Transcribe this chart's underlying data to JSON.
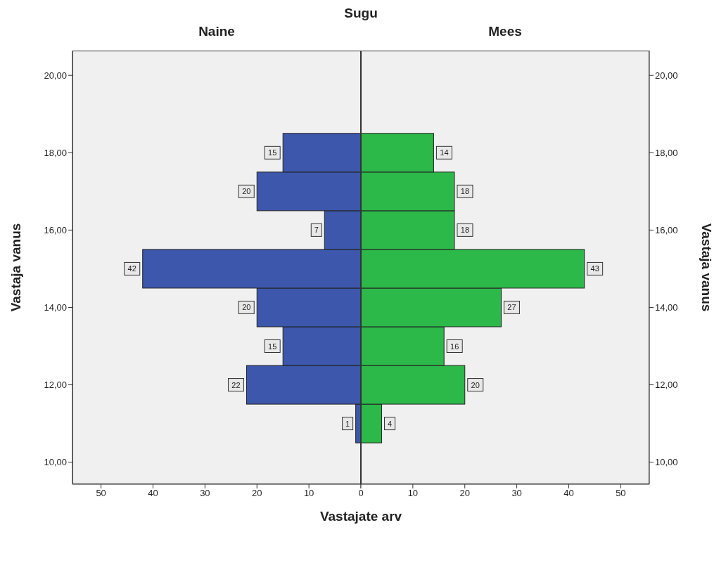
{
  "chart_data": [
    {
      "type": "histogram",
      "orientation": "horizontal",
      "title": "Naine",
      "annotations": [
        "Sugu"
      ],
      "xlabel": "Vastajate arv",
      "ylabel": "Vastaja vanus",
      "bins": [
        10.5,
        11.5,
        12.5,
        13.5,
        14.5,
        15.5,
        16.5,
        17.5,
        18.5
      ],
      "values": [
        1,
        22,
        15,
        20,
        42,
        7,
        20,
        15
      ],
      "color": "#3c57ab",
      "xlim": [
        55.5,
        0
      ],
      "xticks": [
        50,
        40,
        30,
        20,
        10,
        {
          "value": 0,
          "label": null
        }
      ],
      "ylim": [
        9.43,
        20.64
      ],
      "yticks": [
        {
          "value": 10,
          "label": "10,00"
        },
        {
          "value": 12,
          "label": "12,00"
        },
        {
          "value": 14,
          "label": "14,00"
        },
        {
          "value": 16,
          "label": "16,00"
        },
        {
          "value": 18,
          "label": "18,00"
        },
        {
          "value": 20,
          "label": "20,00"
        }
      ],
      "data_labels": true
    },
    {
      "type": "histogram",
      "orientation": "horizontal",
      "title": "Mees",
      "ylabel": "Vastaja vanus",
      "bins": [
        10.5,
        11.5,
        12.5,
        13.5,
        14.5,
        15.5,
        16.5,
        17.5,
        18.5
      ],
      "values": [
        4,
        20,
        16,
        27,
        43,
        18,
        18,
        14
      ],
      "color": "#2db84a",
      "xlim": [
        0,
        55.5
      ],
      "xticks": [
        0,
        10,
        20,
        30,
        40,
        50
      ],
      "ylim": [
        9.43,
        20.64
      ],
      "yticks": [
        {
          "value": 10,
          "label": "10,00"
        },
        {
          "value": 12,
          "label": "12,00"
        },
        {
          "value": 14,
          "label": "14,00"
        },
        {
          "value": 16,
          "label": "16,00"
        },
        {
          "value": 18,
          "label": "18,00"
        },
        {
          "value": 20,
          "label": "20,00"
        }
      ],
      "data_labels": true
    }
  ]
}
